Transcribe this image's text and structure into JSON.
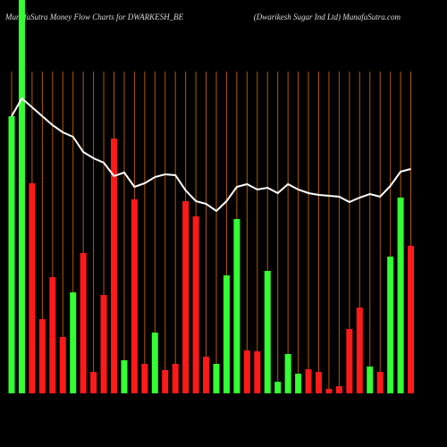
{
  "chart_data": {
    "type": "bar",
    "title": "MunafaSutra  Money Flow  Charts for DWARKESH_BE",
    "subtitle": "(Dwarikesh Sugar Ind Ltd) MunafaSutra.com",
    "categories": [
      null,
      null,
      null,
      null,
      null,
      null,
      null,
      null,
      null,
      null,
      null,
      null,
      null,
      null,
      null,
      null,
      null,
      null,
      null,
      null,
      null,
      null,
      null,
      null,
      null,
      null,
      null,
      null,
      null,
      null,
      null,
      null,
      null,
      null,
      null,
      null,
      null,
      null,
      null,
      null
    ],
    "bars": {
      "values": [
        310,
        440,
        235,
        83,
        130,
        63,
        113,
        157,
        24,
        110,
        285,
        37,
        217,
        33,
        68,
        26,
        33,
        215,
        198,
        41,
        33,
        132,
        195,
        48,
        47,
        137,
        13,
        44,
        22,
        27,
        24,
        5,
        8,
        72,
        96,
        30,
        24,
        153,
        219,
        165
      ],
      "colors": [
        "#33ff33",
        "#33ff33",
        "#ff1a1a",
        "#ff1a1a",
        "#ff1a1a",
        "#ff1a1a",
        "#33ff33",
        "#ff1a1a",
        "#ff1a1a",
        "#ff1a1a",
        "#ff1a1a",
        "#33ff33",
        "#ff1a1a",
        "#ff1a1a",
        "#33ff33",
        "#ff1a1a",
        "#ff1a1a",
        "#ff1a1a",
        "#ff1a1a",
        "#ff1a1a",
        "#33ff33",
        "#33ff33",
        "#33ff33",
        "#ff1a1a",
        "#ff1a1a",
        "#33ff33",
        "#33ff33",
        "#33ff33",
        "#33ff33",
        "#ff1a1a",
        "#ff1a1a",
        "#ff1a1a",
        "#ff1a1a",
        "#ff1a1a",
        "#ff1a1a",
        "#33ff33",
        "#ff1a1a",
        "#33ff33",
        "#33ff33",
        "#ff1a1a"
      ]
    },
    "line": {
      "color": "#ffffff",
      "values": [
        310,
        330,
        320,
        310,
        300,
        292,
        287,
        270,
        263,
        258,
        243,
        247,
        231,
        235,
        242,
        245,
        244,
        227,
        215,
        212,
        204,
        215,
        231,
        234,
        228,
        230,
        224,
        234,
        228,
        224,
        222,
        221,
        220,
        214,
        219,
        223,
        220,
        232,
        248,
        251
      ]
    },
    "ylim": [
      0,
      440
    ],
    "grid": true,
    "grid_color": "#b35900"
  }
}
